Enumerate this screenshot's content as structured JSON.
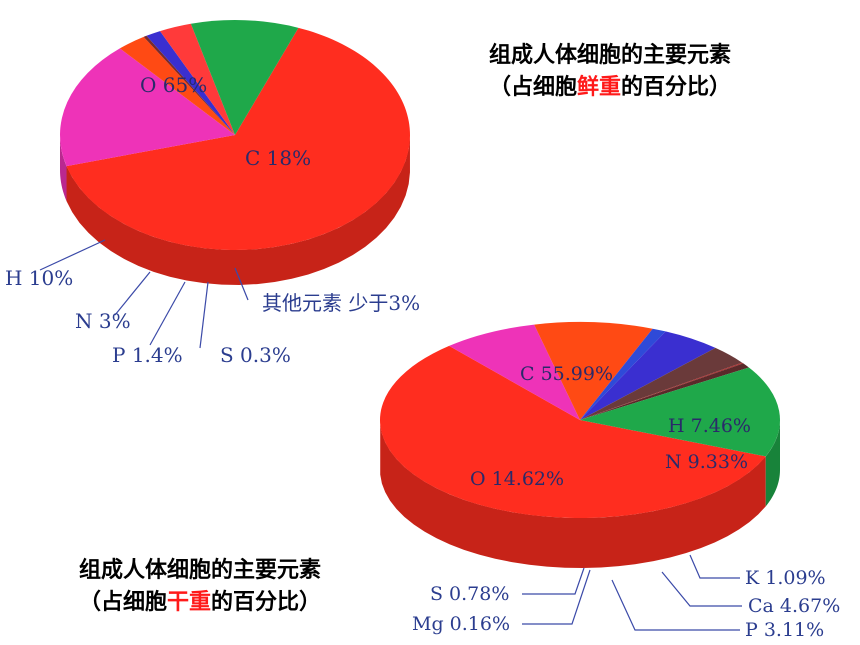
{
  "chart_data": [
    {
      "type": "pie",
      "title_lines": [
        "组成人体细胞的主要元素",
        "（占细胞",
        "鲜重",
        "的百分比）"
      ],
      "slices": [
        {
          "label": "O 65%",
          "element": "O",
          "value": 65,
          "color": "#ff2d1f"
        },
        {
          "label": "C 18%",
          "element": "C",
          "value": 18,
          "color": "#ee33b8"
        },
        {
          "label": "其他元素 少于3%",
          "element": "其他元素",
          "value": 2.7,
          "color": "#ff4a14"
        },
        {
          "label": "S 0.3%",
          "element": "S",
          "value": 0.3,
          "color": "#7a2a2a"
        },
        {
          "label": "P 1.4%",
          "element": "P",
          "value": 1.4,
          "color": "#3a2fd0"
        },
        {
          "label": "N 3%",
          "element": "N",
          "value": 3,
          "color": "#ff3a3a"
        },
        {
          "label": "H 10%",
          "element": "H",
          "value": 10,
          "color": "#1fa84a"
        }
      ]
    },
    {
      "type": "pie",
      "title_lines": [
        "组成人体细胞的主要元素",
        "（占细胞",
        "干重",
        "的百分比）"
      ],
      "slices": [
        {
          "label": "C 55.99%",
          "element": "C",
          "value": 55.99,
          "color": "#ff2d1f"
        },
        {
          "label": "H 7.46%",
          "element": "H",
          "value": 7.46,
          "color": "#ee33b8"
        },
        {
          "label": "N 9.33%",
          "element": "N",
          "value": 9.33,
          "color": "#ff4a14"
        },
        {
          "label": "K 1.09%",
          "element": "K",
          "value": 1.09,
          "color": "#2f4ad8"
        },
        {
          "label": "Ca 4.67%",
          "element": "Ca",
          "value": 4.67,
          "color": "#3a2fd0"
        },
        {
          "label": "P 3.11%",
          "element": "P",
          "value": 3.11,
          "color": "#6a3a3a"
        },
        {
          "label": "Mg 0.16%",
          "element": "Mg",
          "value": 0.16,
          "color": "#a83030"
        },
        {
          "label": "S 0.78%",
          "element": "S",
          "value": 0.78,
          "color": "#5a2a2a"
        },
        {
          "label": "O 14.62%",
          "element": "O",
          "value": 14.62,
          "color": "#1fa84a"
        }
      ]
    }
  ]
}
